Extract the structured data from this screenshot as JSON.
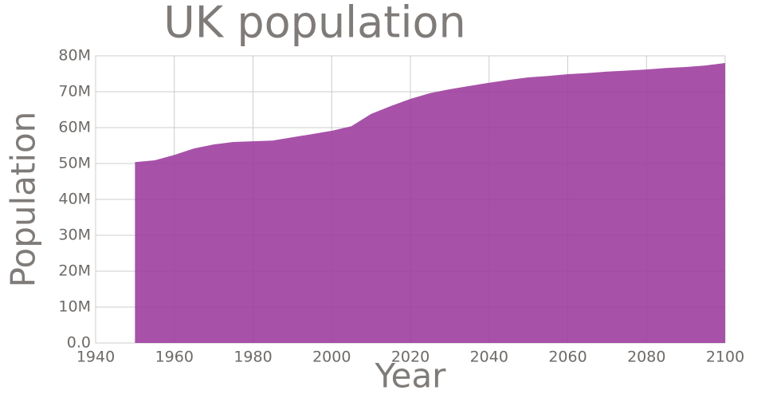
{
  "chart_data": {
    "type": "area",
    "title": "UK population",
    "xlabel": "Year",
    "ylabel": "Population",
    "x": [
      1950,
      1955,
      1960,
      1965,
      1970,
      1975,
      1980,
      1985,
      1990,
      1995,
      2000,
      2005,
      2010,
      2015,
      2020,
      2025,
      2030,
      2035,
      2040,
      2045,
      2050,
      2055,
      2060,
      2065,
      2070,
      2075,
      2080,
      2085,
      2090,
      2095,
      2100
    ],
    "values": [
      50400000,
      50900000,
      52400000,
      54200000,
      55300000,
      56000000,
      56200000,
      56400000,
      57300000,
      58200000,
      59100000,
      60400000,
      63800000,
      66000000,
      68000000,
      69600000,
      70700000,
      71600000,
      72500000,
      73300000,
      74000000,
      74400000,
      74900000,
      75200000,
      75600000,
      75900000,
      76200000,
      76600000,
      76900000,
      77300000,
      78000000
    ],
    "color": "#9b3a9c",
    "xlim": [
      1940,
      2100
    ],
    "xticks": [
      1940,
      1960,
      1980,
      2000,
      2020,
      2040,
      2060,
      2080,
      2100
    ],
    "ylim": [
      0,
      80000000
    ],
    "yticks": [
      {
        "value": 0,
        "label": "0.0"
      },
      {
        "value": 10000000,
        "label": "10M"
      },
      {
        "value": 20000000,
        "label": "20M"
      },
      {
        "value": 30000000,
        "label": "30M"
      },
      {
        "value": 40000000,
        "label": "40M"
      },
      {
        "value": 50000000,
        "label": "50M"
      },
      {
        "value": 60000000,
        "label": "60M"
      },
      {
        "value": 70000000,
        "label": "70M"
      },
      {
        "value": 80000000,
        "label": "80M"
      }
    ],
    "grid": true
  }
}
